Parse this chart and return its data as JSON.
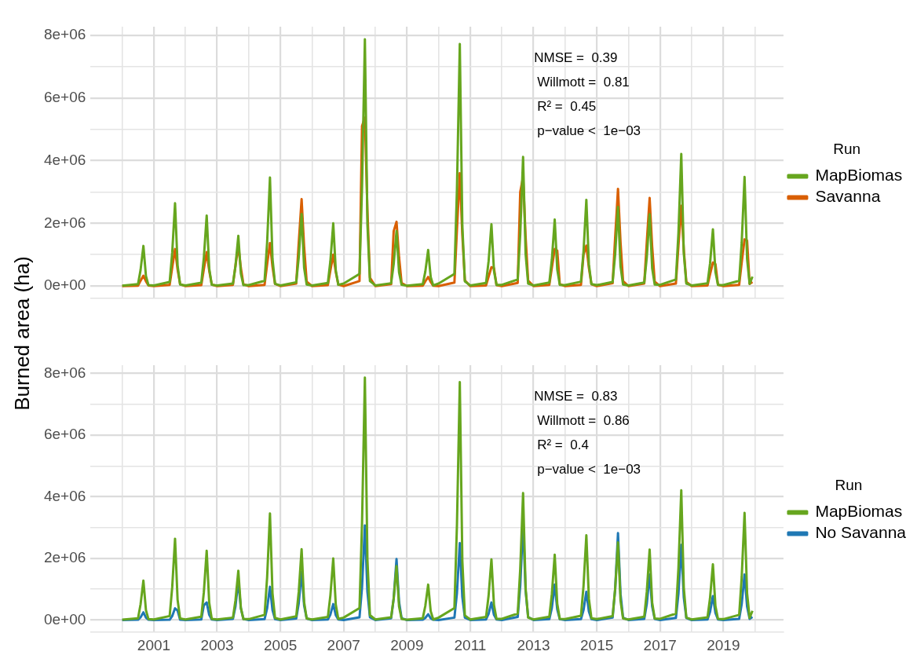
{
  "chart_data": [
    {
      "type": "line",
      "ylabel": "Burned area (ha)",
      "legend_title": "Run",
      "legend": "right",
      "grid": true,
      "tick_labels": "y",
      "annotations": [
        "NMSE =  0.39",
        "Willmott =  0.81",
        "R² =  0.45",
        "p−value <  1e−03"
      ],
      "xlim": [
        1999,
        2020.9
      ],
      "xticks": [
        {
          "value": 2000,
          "label": null
        },
        {
          "value": 2001,
          "label": null
        },
        {
          "value": 2002,
          "label": null
        },
        {
          "value": 2003,
          "label": null
        },
        {
          "value": 2004,
          "label": null
        },
        {
          "value": 2005,
          "label": null
        },
        {
          "value": 2006,
          "label": null
        },
        {
          "value": 2007,
          "label": null
        },
        {
          "value": 2008,
          "label": null
        },
        {
          "value": 2009,
          "label": null
        },
        {
          "value": 2010,
          "label": null
        },
        {
          "value": 2011,
          "label": null
        },
        {
          "value": 2012,
          "label": null
        },
        {
          "value": 2013,
          "label": null
        },
        {
          "value": 2014,
          "label": null
        },
        {
          "value": 2015,
          "label": null
        },
        {
          "value": 2016,
          "label": null
        },
        {
          "value": 2017,
          "label": null
        },
        {
          "value": 2018,
          "label": null
        },
        {
          "value": 2019,
          "label": null
        },
        {
          "value": 2020,
          "label": null
        }
      ],
      "ylim": [
        -400000,
        8270000
      ],
      "yticks": [
        {
          "value": 0,
          "label": "0e+00"
        },
        {
          "value": 1000000,
          "label": null
        },
        {
          "value": 2000000,
          "label": "2e+06"
        },
        {
          "value": 3000000,
          "label": null
        },
        {
          "value": 4000000,
          "label": "4e+06"
        },
        {
          "value": 5000000,
          "label": null
        },
        {
          "value": 6000000,
          "label": "6e+06"
        },
        {
          "value": 7000000,
          "label": null
        },
        {
          "value": 8000000,
          "label": "8e+06"
        }
      ],
      "x": [
        2000,
        2000.5,
        2000.58,
        2000.67,
        2000.75,
        2000.83,
        2001,
        2001.5,
        2001.58,
        2001.67,
        2001.75,
        2001.83,
        2002,
        2002.5,
        2002.58,
        2002.67,
        2002.75,
        2002.83,
        2003,
        2003.5,
        2003.58,
        2003.67,
        2003.75,
        2003.83,
        2004,
        2004.5,
        2004.58,
        2004.67,
        2004.75,
        2004.83,
        2005,
        2005.5,
        2005.58,
        2005.67,
        2005.75,
        2005.83,
        2006,
        2006.5,
        2006.58,
        2006.67,
        2006.75,
        2006.83,
        2007,
        2007.5,
        2007.58,
        2007.67,
        2007.75,
        2007.83,
        2008,
        2008.5,
        2008.58,
        2008.67,
        2008.75,
        2008.83,
        2009,
        2009.5,
        2009.58,
        2009.67,
        2009.75,
        2009.83,
        2010,
        2010.5,
        2010.58,
        2010.67,
        2010.75,
        2010.83,
        2011,
        2011.5,
        2011.58,
        2011.67,
        2011.75,
        2011.83,
        2012,
        2012.5,
        2012.58,
        2012.67,
        2012.75,
        2012.83,
        2013,
        2013.5,
        2013.58,
        2013.67,
        2013.75,
        2013.83,
        2014,
        2014.5,
        2014.58,
        2014.67,
        2014.75,
        2014.83,
        2015,
        2015.5,
        2015.58,
        2015.67,
        2015.75,
        2015.83,
        2016,
        2016.5,
        2016.58,
        2016.67,
        2016.75,
        2016.83,
        2017,
        2017.5,
        2017.58,
        2017.67,
        2017.75,
        2017.83,
        2018,
        2018.5,
        2018.58,
        2018.67,
        2018.75,
        2018.83,
        2019,
        2019.5,
        2019.58,
        2019.67,
        2019.75,
        2019.83,
        2019.92
      ],
      "series": [
        {
          "name": "MapBiomas",
          "color": "#66a61e",
          "values": [
            10000,
            60000,
            510000,
            1280000,
            320000,
            30000,
            20000,
            130000,
            1060000,
            2640000,
            660000,
            50000,
            20000,
            110000,
            900000,
            2250000,
            560000,
            40000,
            20000,
            80000,
            640000,
            1600000,
            400000,
            30000,
            30000,
            170000,
            1380000,
            3460000,
            870000,
            70000,
            20000,
            120000,
            920000,
            2300000,
            580000,
            50000,
            20000,
            100000,
            800000,
            2000000,
            500000,
            40000,
            80000,
            390000,
            3150000,
            7870000,
            1970000,
            160000,
            20000,
            90000,
            700000,
            1750000,
            440000,
            40000,
            10000,
            60000,
            460000,
            1150000,
            290000,
            20000,
            80000,
            390000,
            3090000,
            7720000,
            1930000,
            150000,
            20000,
            100000,
            790000,
            1970000,
            490000,
            40000,
            40000,
            210000,
            1650000,
            4120000,
            1030000,
            80000,
            20000,
            110000,
            850000,
            2120000,
            530000,
            40000,
            30000,
            140000,
            1100000,
            2750000,
            690000,
            60000,
            30000,
            130000,
            1010000,
            2520000,
            630000,
            50000,
            20000,
            110000,
            920000,
            2290000,
            570000,
            50000,
            40000,
            210000,
            1680000,
            4210000,
            1050000,
            80000,
            20000,
            90000,
            720000,
            1810000,
            450000,
            40000,
            30000,
            170000,
            1390000,
            3480000,
            870000,
            70000,
            300000
          ]
        },
        {
          "name": "Savanna",
          "color": "#d95f02",
          "values": [
            0,
            10000,
            170000,
            330000,
            150000,
            20000,
            0,
            40000,
            590000,
            1180000,
            530000,
            60000,
            0,
            30000,
            540000,
            1080000,
            490000,
            50000,
            0,
            40000,
            650000,
            1290000,
            580000,
            60000,
            0,
            40000,
            690000,
            1370000,
            620000,
            70000,
            0,
            80000,
            1390000,
            2770000,
            1250000,
            140000,
            0,
            30000,
            500000,
            1000000,
            450000,
            50000,
            0,
            160000,
            5100000,
            5370000,
            2420000,
            270000,
            0,
            60000,
            1750000,
            2050000,
            920000,
            100000,
            0,
            10000,
            150000,
            290000,
            130000,
            10000,
            0,
            110000,
            1800000,
            3600000,
            1620000,
            180000,
            0,
            20000,
            300000,
            600000,
            570000,
            30000,
            0,
            100000,
            3000000,
            3480000,
            1570000,
            170000,
            0,
            40000,
            590000,
            1180000,
            1130000,
            60000,
            0,
            40000,
            1000000,
            1290000,
            580000,
            60000,
            0,
            90000,
            1550000,
            3100000,
            1400000,
            160000,
            0,
            80000,
            1400000,
            2810000,
            1260000,
            140000,
            0,
            80000,
            1280000,
            2560000,
            1150000,
            130000,
            0,
            20000,
            380000,
            750000,
            700000,
            40000,
            0,
            40000,
            750000,
            1490000,
            1450000,
            70000,
            130000
          ]
        }
      ]
    },
    {
      "type": "line",
      "legend_title": "Run",
      "legend": "right",
      "grid": true,
      "annotations": [
        "NMSE =  0.83",
        "Willmott =  0.86",
        "R² =  0.4",
        "p−value <  1e−03"
      ],
      "xlim": [
        1999,
        2020.9
      ],
      "xticks": [
        {
          "value": 2000,
          "label": null
        },
        {
          "value": 2001,
          "label": "2001"
        },
        {
          "value": 2002,
          "label": null
        },
        {
          "value": 2003,
          "label": "2003"
        },
        {
          "value": 2004,
          "label": null
        },
        {
          "value": 2005,
          "label": "2005"
        },
        {
          "value": 2006,
          "label": null
        },
        {
          "value": 2007,
          "label": "2007"
        },
        {
          "value": 2008,
          "label": null
        },
        {
          "value": 2009,
          "label": "2009"
        },
        {
          "value": 2010,
          "label": null
        },
        {
          "value": 2011,
          "label": "2011"
        },
        {
          "value": 2012,
          "label": null
        },
        {
          "value": 2013,
          "label": "2013"
        },
        {
          "value": 2014,
          "label": null
        },
        {
          "value": 2015,
          "label": "2015"
        },
        {
          "value": 2016,
          "label": null
        },
        {
          "value": 2017,
          "label": "2017"
        },
        {
          "value": 2018,
          "label": null
        },
        {
          "value": 2019,
          "label": "2019"
        },
        {
          "value": 2020,
          "label": null
        }
      ],
      "ylim": [
        -400000,
        8270000
      ],
      "yticks": [
        {
          "value": 0,
          "label": "0e+00"
        },
        {
          "value": 1000000,
          "label": null
        },
        {
          "value": 2000000,
          "label": "2e+06"
        },
        {
          "value": 3000000,
          "label": null
        },
        {
          "value": 4000000,
          "label": "4e+06"
        },
        {
          "value": 5000000,
          "label": null
        },
        {
          "value": 6000000,
          "label": "6e+06"
        },
        {
          "value": 7000000,
          "label": null
        },
        {
          "value": 8000000,
          "label": "8e+06"
        }
      ],
      "x": [
        2000,
        2000.5,
        2000.58,
        2000.67,
        2000.75,
        2000.83,
        2001,
        2001.5,
        2001.58,
        2001.67,
        2001.75,
        2001.83,
        2002,
        2002.5,
        2002.58,
        2002.67,
        2002.75,
        2002.83,
        2003,
        2003.5,
        2003.58,
        2003.67,
        2003.75,
        2003.83,
        2004,
        2004.5,
        2004.58,
        2004.67,
        2004.75,
        2004.83,
        2005,
        2005.5,
        2005.58,
        2005.67,
        2005.75,
        2005.83,
        2006,
        2006.5,
        2006.58,
        2006.67,
        2006.75,
        2006.83,
        2007,
        2007.5,
        2007.58,
        2007.67,
        2007.75,
        2007.83,
        2008,
        2008.5,
        2008.58,
        2008.67,
        2008.75,
        2008.83,
        2009,
        2009.5,
        2009.58,
        2009.67,
        2009.75,
        2009.83,
        2010,
        2010.5,
        2010.58,
        2010.67,
        2010.75,
        2010.83,
        2011,
        2011.5,
        2011.58,
        2011.67,
        2011.75,
        2011.83,
        2012,
        2012.5,
        2012.58,
        2012.67,
        2012.75,
        2012.83,
        2013,
        2013.5,
        2013.58,
        2013.67,
        2013.75,
        2013.83,
        2014,
        2014.5,
        2014.58,
        2014.67,
        2014.75,
        2014.83,
        2015,
        2015.5,
        2015.58,
        2015.67,
        2015.75,
        2015.83,
        2016,
        2016.5,
        2016.58,
        2016.67,
        2016.75,
        2016.83,
        2017,
        2017.5,
        2017.58,
        2017.67,
        2017.75,
        2017.83,
        2018,
        2018.5,
        2018.58,
        2018.67,
        2018.75,
        2018.83,
        2019,
        2019.5,
        2019.58,
        2019.67,
        2019.75,
        2019.83,
        2019.92
      ],
      "series": [
        {
          "name": "MapBiomas",
          "color": "#66a61e",
          "values": [
            10000,
            60000,
            510000,
            1280000,
            320000,
            30000,
            20000,
            130000,
            1060000,
            2640000,
            660000,
            50000,
            20000,
            110000,
            900000,
            2250000,
            560000,
            40000,
            20000,
            80000,
            640000,
            1600000,
            400000,
            30000,
            30000,
            170000,
            1380000,
            3460000,
            870000,
            70000,
            20000,
            120000,
            920000,
            2300000,
            580000,
            50000,
            20000,
            100000,
            800000,
            2000000,
            500000,
            40000,
            80000,
            390000,
            3150000,
            7870000,
            1970000,
            160000,
            20000,
            90000,
            700000,
            1750000,
            440000,
            40000,
            10000,
            60000,
            460000,
            1150000,
            290000,
            20000,
            80000,
            390000,
            3090000,
            7720000,
            1930000,
            150000,
            20000,
            100000,
            790000,
            1970000,
            490000,
            40000,
            40000,
            210000,
            1650000,
            4120000,
            1030000,
            80000,
            20000,
            110000,
            850000,
            2120000,
            530000,
            40000,
            30000,
            140000,
            1100000,
            2750000,
            690000,
            60000,
            30000,
            130000,
            1010000,
            2520000,
            630000,
            50000,
            20000,
            110000,
            920000,
            2290000,
            570000,
            50000,
            40000,
            210000,
            1680000,
            4210000,
            1050000,
            80000,
            20000,
            90000,
            720000,
            1810000,
            450000,
            40000,
            30000,
            170000,
            1390000,
            3480000,
            870000,
            70000,
            300000
          ]
        },
        {
          "name": "No Savanna",
          "color": "#1f78b4",
          "values": [
            0,
            10000,
            90000,
            250000,
            80000,
            10000,
            0,
            10000,
            130000,
            380000,
            310000,
            10000,
            0,
            20000,
            480000,
            570000,
            170000,
            20000,
            0,
            40000,
            450000,
            1280000,
            380000,
            40000,
            0,
            30000,
            380000,
            1080000,
            320000,
            30000,
            0,
            50000,
            550000,
            1570000,
            470000,
            50000,
            0,
            20000,
            180000,
            520000,
            160000,
            20000,
            0,
            90000,
            1070000,
            3070000,
            920000,
            90000,
            0,
            60000,
            690000,
            1980000,
            590000,
            60000,
            0,
            10000,
            70000,
            190000,
            60000,
            10000,
            0,
            80000,
            880000,
            2500000,
            750000,
            80000,
            0,
            20000,
            200000,
            570000,
            170000,
            20000,
            0,
            100000,
            1110000,
            3170000,
            950000,
            100000,
            0,
            30000,
            400000,
            1150000,
            350000,
            30000,
            0,
            30000,
            320000,
            920000,
            280000,
            30000,
            0,
            80000,
            990000,
            2820000,
            850000,
            80000,
            0,
            40000,
            520000,
            1480000,
            440000,
            40000,
            0,
            70000,
            850000,
            2440000,
            730000,
            70000,
            0,
            20000,
            270000,
            780000,
            230000,
            20000,
            0,
            40000,
            520000,
            1480000,
            440000,
            40000,
            100000
          ]
        }
      ]
    }
  ]
}
